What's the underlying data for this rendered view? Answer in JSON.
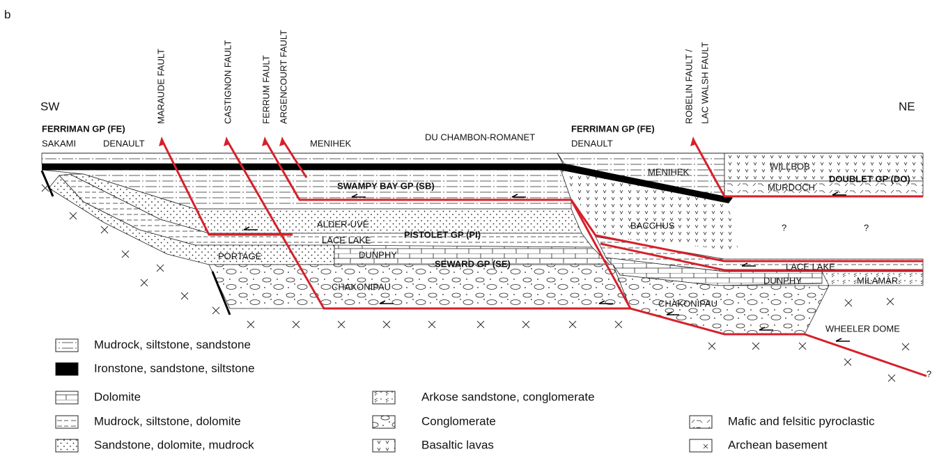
{
  "panel_label": "b",
  "directions": {
    "left": "SW",
    "right": "NE"
  },
  "faults": [
    [
      "MARAUDE FAULT"
    ],
    [
      "CASTIGNON FAULT"
    ],
    [
      "FERRUM FAULT"
    ],
    [
      "ARGENCOURT FAULT"
    ],
    [
      "ROBELIN FAULT /",
      "LAC WALSH FAULT"
    ]
  ],
  "groups": [
    "FERRIMAN GP (FE)",
    "FERRIMAN GP (FE)",
    "SWAMPY BAY GP (SB)",
    "DOUBLET GP (DO)",
    "PISTOLET GP (PI)",
    "SEWARD GP (SE)"
  ],
  "units": [
    "SAKAMI",
    "DENAULT",
    "MENIHEK",
    "DU CHAMBON-ROMANET",
    "DENAULT",
    "MENIHEK",
    "WILLBOB",
    "MURDOCH",
    "ALDER-UVÉ",
    "BACCHUS",
    "LACE LAKE",
    "PORTAGE",
    "DUNPHY",
    "CHAKONIPAU",
    "LACE LAKE",
    "DUNPHY",
    "MILAMAR",
    "CHAKONIPAU",
    "WHEELER DOME",
    "?",
    "?",
    "?"
  ],
  "legend": [
    "Mudrock, siltstone, sandstone",
    "Ironstone, sandstone, siltstone",
    "Dolomite",
    "Mudrock, siltstone, dolomite",
    "Sandstone, dolomite, mudrock",
    "Arkose sandstone, conglomerate",
    "Conglomerate",
    "Basaltic lavas",
    "Mafic and felsitic pyroclastic",
    "Archean basement"
  ]
}
